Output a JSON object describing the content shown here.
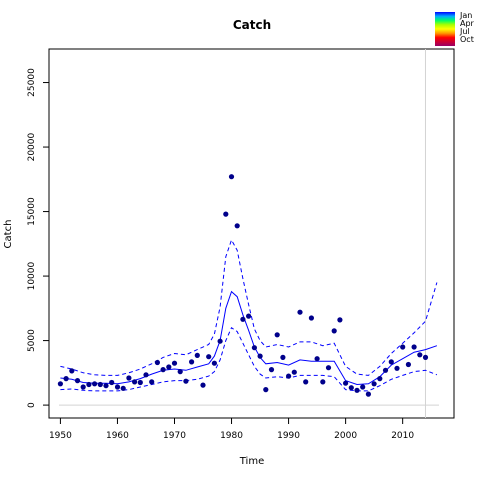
{
  "chart_data": {
    "type": "scatter",
    "title": "Catch",
    "xlabel": "Time",
    "ylabel": "Catch",
    "xlim": [
      1948.0,
      2019.0
    ],
    "ylim": [
      -1000,
      27600
    ],
    "x_ticks": [
      1950,
      1960,
      1970,
      1980,
      1990,
      2000,
      2010
    ],
    "y_ticks": [
      0,
      5000,
      10000,
      15000,
      20000,
      25000
    ],
    "grid": false,
    "zero_line": true,
    "vertical_reference_line": 2014,
    "legend": {
      "placement": "top-right",
      "entries": [
        "Jan",
        "Apr",
        "Jul",
        "Oct"
      ],
      "gradient_colors": [
        "#0000ff",
        "#00aaff",
        "#00ff66",
        "#aaff00",
        "#ffff00",
        "#ff9900",
        "#ff0000",
        "#cc0033",
        "#990066"
      ]
    },
    "colors": {
      "points": "#00008b",
      "fit": "#0000ff",
      "zero_line": "#d3d3d3",
      "reference_line": "#d3d3d3"
    },
    "series": [
      {
        "type": "points",
        "x": [
          1950,
          1951,
          1952,
          1953,
          1954,
          1955,
          1956,
          1957,
          1958,
          1959,
          1960,
          1961,
          1962,
          1963,
          1964,
          1965,
          1966,
          1967,
          1968,
          1969,
          1970,
          1971,
          1972,
          1973,
          1974,
          1975,
          1976,
          1977,
          1978,
          1979,
          1980,
          1981,
          1982,
          1983,
          1984,
          1985,
          1986,
          1987,
          1988,
          1989,
          1990,
          1991,
          1992,
          1993,
          1994,
          1995,
          1996,
          1997,
          1998,
          1999,
          2000,
          2001,
          2002,
          2003,
          2004,
          2005,
          2006,
          2007,
          2008,
          2009,
          2010,
          2011,
          2012,
          2013,
          2014
        ],
        "y": [
          1650,
          2050,
          2650,
          1900,
          1400,
          1600,
          1650,
          1600,
          1500,
          1750,
          1400,
          1300,
          2100,
          1800,
          1750,
          2350,
          1800,
          3300,
          2750,
          2950,
          3250,
          2600,
          1850,
          3350,
          3850,
          1550,
          3750,
          3250,
          4950,
          14800,
          17700,
          13900,
          6650,
          6900,
          4450,
          3800,
          1200,
          2750,
          5450,
          3700,
          2250,
          2550,
          7200,
          1800,
          6750,
          3600,
          1800,
          2900,
          5750,
          6600,
          1700,
          1350,
          1150,
          1400,
          850,
          1650,
          2050,
          2700,
          3350,
          2850,
          4500,
          3150,
          4500,
          3900,
          3700
        ]
      },
      {
        "type": "line",
        "style": "solid",
        "x": [
          1950,
          1952,
          1954,
          1956,
          1958,
          1960,
          1962,
          1964,
          1966,
          1968,
          1970,
          1972,
          1974,
          1976,
          1977,
          1978,
          1979,
          1980,
          1981,
          1982,
          1983,
          1984,
          1985,
          1986,
          1988,
          1990,
          1992,
          1994,
          1996,
          1998,
          2000,
          2002,
          2004,
          2006,
          2008,
          2010,
          2012,
          2014,
          2016
        ],
        "y": [
          2100,
          2000,
          1750,
          1700,
          1700,
          1650,
          1800,
          2050,
          2400,
          2700,
          2800,
          2700,
          2950,
          3200,
          3800,
          5000,
          7500,
          8800,
          8400,
          7000,
          5800,
          4500,
          3700,
          3200,
          3300,
          3100,
          3500,
          3400,
          3400,
          3400,
          1900,
          1600,
          1650,
          2200,
          3100,
          3600,
          4100,
          4300,
          4600
        ]
      },
      {
        "type": "line",
        "style": "dashed",
        "x": [
          1950,
          1952,
          1954,
          1956,
          1958,
          1960,
          1962,
          1964,
          1966,
          1968,
          1970,
          1972,
          1974,
          1976,
          1977,
          1978,
          1979,
          1980,
          1981,
          1982,
          1983,
          1984,
          1985,
          1986,
          1988,
          1990,
          1992,
          1994,
          1996,
          1998,
          2000,
          2002,
          2004,
          2006,
          2008,
          2010,
          2012,
          2014,
          2016
        ],
        "y": [
          3000,
          2800,
          2500,
          2350,
          2300,
          2300,
          2500,
          2800,
          3200,
          3700,
          4000,
          3900,
          4300,
          4700,
          5500,
          7600,
          11500,
          12800,
          12000,
          9800,
          7800,
          5900,
          5000,
          4500,
          4700,
          4500,
          4900,
          4900,
          4600,
          4800,
          3000,
          2400,
          2300,
          3000,
          4000,
          4800,
          5600,
          6500,
          9500
        ]
      },
      {
        "type": "line",
        "style": "dashed",
        "x": [
          1950,
          1952,
          1954,
          1956,
          1958,
          1960,
          1962,
          1964,
          1966,
          1968,
          1970,
          1972,
          1974,
          1976,
          1977,
          1978,
          1979,
          1980,
          1981,
          1982,
          1983,
          1984,
          1985,
          1986,
          1988,
          1990,
          1992,
          1994,
          1996,
          1998,
          2000,
          2002,
          2004,
          2006,
          2008,
          2010,
          2012,
          2014,
          2016
        ],
        "y": [
          1200,
          1250,
          1150,
          1100,
          1100,
          1100,
          1200,
          1400,
          1600,
          1800,
          1900,
          1900,
          2000,
          2250,
          2600,
          3500,
          5000,
          6000,
          5700,
          4800,
          3900,
          3000,
          2400,
          2100,
          2200,
          2100,
          2300,
          2300,
          2300,
          2200,
          1200,
          1100,
          1100,
          1500,
          2000,
          2300,
          2600,
          2700,
          2350
        ]
      }
    ]
  }
}
